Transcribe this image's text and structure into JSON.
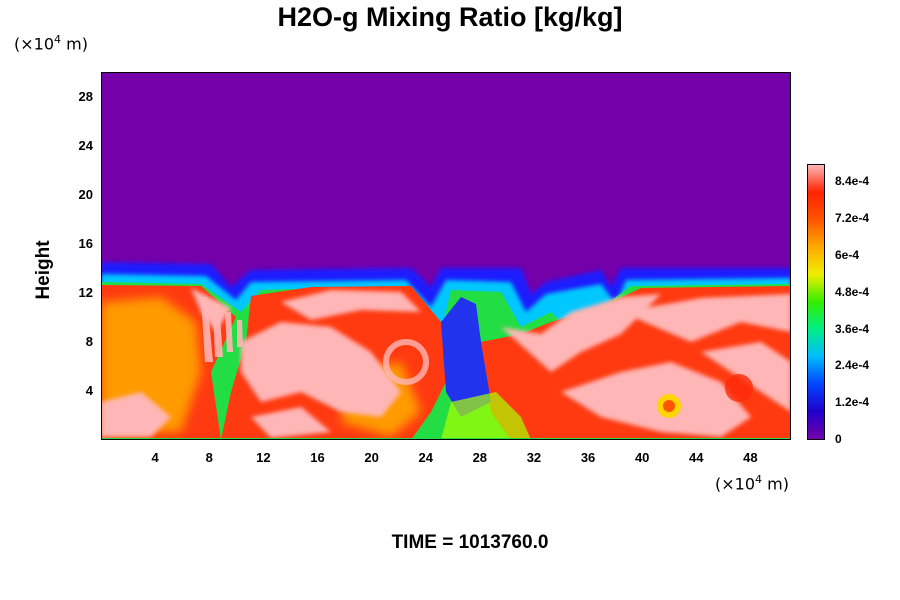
{
  "chart_data": {
    "type": "heatmap",
    "title": "H2O-g Mixing Ratio [kg/kg]",
    "ylabel": "Height",
    "xlabel": "",
    "y_unit": "(×10",
    "x_unit": "(×10",
    "unit_exponent": "4",
    "unit_suffix": " m)",
    "footer": "TIME = 1013760.0",
    "xlim": [
      0,
      51
    ],
    "ylim": [
      0,
      30
    ],
    "x_ticks": [
      "4",
      "8",
      "12",
      "16",
      "20",
      "24",
      "28",
      "32",
      "36",
      "40",
      "44",
      "48"
    ],
    "y_ticks": [
      "4",
      "8",
      "12",
      "16",
      "20",
      "24",
      "28"
    ],
    "colorbar": {
      "range": [
        0,
        0.0009
      ],
      "tick_labels": [
        "0",
        "1.2e-4",
        "2.4e-4",
        "3.6e-4",
        "4.8e-4",
        "6e-4",
        "7.2e-4",
        "8.4e-4"
      ],
      "tick_values": [
        0,
        0.00012,
        0.00024,
        0.00036,
        0.00048,
        0.0006,
        0.00072,
        0.00084
      ],
      "colors": [
        "#7400aa",
        "#2200cc",
        "#0044ff",
        "#00bbff",
        "#00ee88",
        "#33ee00",
        "#eeee00",
        "#ffaa00",
        "#ff5500",
        "#ff2200",
        "#ffb6b6"
      ]
    },
    "moist_layer_top_km_x10e4": 13.5,
    "background_value": 0
  }
}
